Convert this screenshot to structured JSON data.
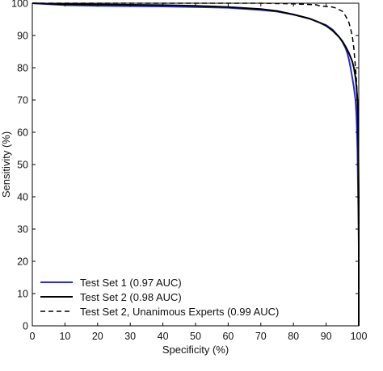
{
  "chart_data": {
    "type": "line",
    "title": "",
    "xlabel": "Specificity (%)",
    "ylabel": "Sensitivity (%)",
    "xlim": [
      0,
      100
    ],
    "ylim": [
      0,
      100
    ],
    "xticks": [
      0,
      10,
      20,
      30,
      40,
      50,
      60,
      70,
      80,
      90,
      100
    ],
    "yticks": [
      0,
      10,
      20,
      30,
      40,
      50,
      60,
      70,
      80,
      90,
      100
    ],
    "grid": false,
    "legend_position": "bottom-left",
    "series": [
      {
        "name": "Test Set 1 (0.97 AUC)",
        "color": "#2b2bd4",
        "dash": "solid",
        "x": [
          0,
          10,
          20,
          30,
          40,
          50,
          60,
          70,
          75,
          80,
          85,
          88,
          90,
          92,
          94,
          95,
          96,
          96.5,
          97,
          97.5,
          98,
          98.5,
          99,
          99.3,
          99.6,
          100,
          100
        ],
        "y": [
          100,
          99.4,
          99.2,
          99.1,
          99.0,
          98.8,
          98.6,
          97.9,
          97.4,
          96.5,
          95.2,
          94.0,
          93.2,
          91.8,
          89.5,
          88.0,
          86.0,
          84.5,
          82.5,
          80.0,
          77.0,
          74.0,
          70.0,
          65.0,
          55.0,
          25.0,
          0
        ]
      },
      {
        "name": "Test Set 2 (0.98 AUC)",
        "color": "#000000",
        "dash": "solid",
        "x": [
          0,
          10,
          20,
          30,
          40,
          50,
          60,
          70,
          75,
          80,
          85,
          88,
          90,
          92,
          94,
          95,
          96,
          97,
          98,
          98.5,
          99,
          99.3,
          99.6,
          99.8,
          100,
          100
        ],
        "y": [
          100,
          99.7,
          99.6,
          99.5,
          99.4,
          99.2,
          98.8,
          98.2,
          97.6,
          96.5,
          95.2,
          94.0,
          93.0,
          91.5,
          89.5,
          88.2,
          86.5,
          84.5,
          82.0,
          80.0,
          77.0,
          74.0,
          70.0,
          60.0,
          40.0,
          0
        ]
      },
      {
        "name": "Test Set 2, Unanimous Experts (0.99 AUC)",
        "color": "#000000",
        "dash": "dashed",
        "x": [
          0,
          20,
          40,
          60,
          70,
          80,
          85,
          87,
          88,
          90,
          92,
          93,
          94,
          95,
          96,
          97,
          98,
          98.5,
          99,
          99.3,
          99.5,
          99.7,
          99.85,
          100,
          100
        ],
        "y": [
          100,
          100,
          100,
          100,
          100,
          99.8,
          99.6,
          99.5,
          99.2,
          99.0,
          98.8,
          98.5,
          98.0,
          97.5,
          96.0,
          94.0,
          90.0,
          86.0,
          80.0,
          76.0,
          72.0,
          67.0,
          62.0,
          30.0,
          0
        ]
      }
    ]
  }
}
